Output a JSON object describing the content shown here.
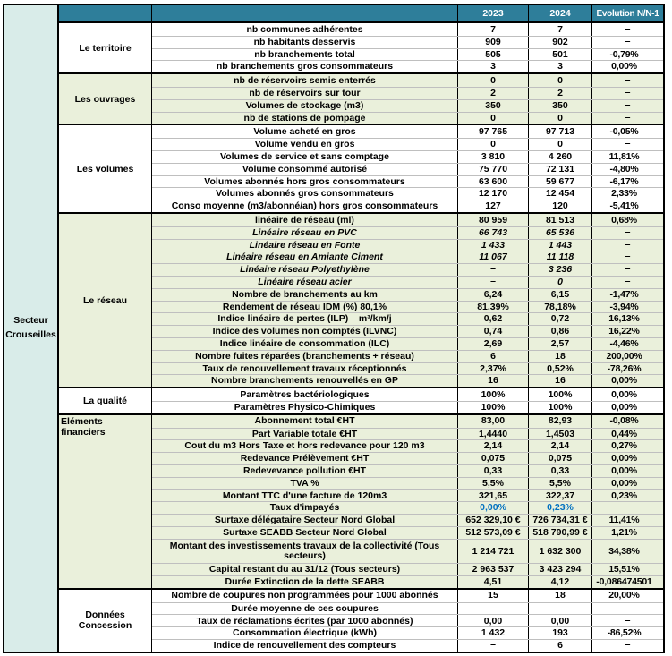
{
  "sector_label": "Secteur Crouseilles",
  "header": {
    "col_2023": "2023",
    "col_2024": "2024",
    "col_evolution": "Evolution N/N-1"
  },
  "colors": {
    "header_bg": "#2E7E9A",
    "header_text": "#FFFFFF",
    "section_green_bg": "#EAF0DB",
    "sector_bg": "#D9ECE9",
    "blue_value": "#0070C0"
  },
  "dash_symbol": "–",
  "sections": [
    {
      "key": "territoire",
      "label": "Le territoire",
      "shaded": false,
      "rows": [
        {
          "label": "nb communes adhérentes",
          "y2023": "7",
          "y2024": "7",
          "evo": "–"
        },
        {
          "label": "nb habitants desservis",
          "y2023": "909",
          "y2024": "902",
          "evo": "–"
        },
        {
          "label": "nb branchements total",
          "y2023": "505",
          "y2024": "501",
          "evo": "-0,79%"
        },
        {
          "label": "nb branchements gros consommateurs",
          "y2023": "3",
          "y2024": "3",
          "evo": "0,00%"
        }
      ]
    },
    {
      "key": "ouvrages",
      "label": "Les ouvrages",
      "shaded": true,
      "rows": [
        {
          "label": "nb de réservoirs semis enterrés",
          "y2023": "0",
          "y2024": "0",
          "evo": "–"
        },
        {
          "label": "nb de réservoirs sur tour",
          "y2023": "2",
          "y2024": "2",
          "evo": "–"
        },
        {
          "label": "Volumes de stockage (m3)",
          "y2023": "350",
          "y2024": "350",
          "evo": "–"
        },
        {
          "label": "nb de stations de pompage",
          "y2023": "0",
          "y2024": "0",
          "evo": "–"
        }
      ]
    },
    {
      "key": "volumes",
      "label": "Les volumes",
      "shaded": false,
      "rows": [
        {
          "label": "Volume acheté en gros",
          "y2023": "97 765",
          "y2024": "97 713",
          "evo": "-0,05%"
        },
        {
          "label": "Volume vendu en gros",
          "y2023": "0",
          "y2024": "0",
          "evo": "–"
        },
        {
          "label": "Volumes de service et sans comptage",
          "y2023": "3 810",
          "y2024": "4 260",
          "evo": "11,81%"
        },
        {
          "label": "Volume consommé autorisé",
          "y2023": "75 770",
          "y2024": "72 131",
          "evo": "-4,80%"
        },
        {
          "label": "Volumes abonnés hors gros consommateurs",
          "y2023": "63 600",
          "y2024": "59 677",
          "evo": "-6,17%"
        },
        {
          "label": "Volumes abonnés gros consommateurs",
          "y2023": "12 170",
          "y2024": "12 454",
          "evo": "2,33%"
        },
        {
          "label": "Conso moyenne (m3/abonné/an) hors gros consommateurs",
          "y2023": "127",
          "y2024": "120",
          "evo": "-5,41%"
        }
      ]
    },
    {
      "key": "reseau",
      "label": "Le réseau",
      "shaded": true,
      "rows": [
        {
          "label": "linéaire de réseau (ml)",
          "y2023": "80 959",
          "y2024": "81 513",
          "evo": "0,68%"
        },
        {
          "label": "Linéaire réseau en PVC",
          "y2023": "66 743",
          "y2024": "65 536",
          "evo": "–",
          "italic": true
        },
        {
          "label": "Linéaire réseau en Fonte",
          "y2023": "1 433",
          "y2024": "1 443",
          "evo": "–",
          "italic": true
        },
        {
          "label": "Linéaire réseau en Amiante Ciment",
          "y2023": "11 067",
          "y2024": "11 118",
          "evo": "–",
          "italic": true
        },
        {
          "label": "Linéaire réseau Polyethylène",
          "y2023": "–",
          "y2024": "3 236",
          "evo": "–",
          "italic": true
        },
        {
          "label": "Linéaire réseau acier",
          "y2023": "–",
          "y2024": "0",
          "evo": "–",
          "italic": true
        },
        {
          "label": "Nombre de branchements au km",
          "y2023": "6,24",
          "y2024": "6,15",
          "evo": "-1,47%"
        },
        {
          "label": "Rendement de réseau IDM (%) 80,1%",
          "y2023": "81,39%",
          "y2024": "78,18%",
          "evo": "-3,94%"
        },
        {
          "label": "Indice linéaire de pertes (ILP) – m³/km/j",
          "y2023": "0,62",
          "y2024": "0,72",
          "evo": "16,13%"
        },
        {
          "label": "Indice des volumes non comptés (ILVNC)",
          "y2023": "0,74",
          "y2024": "0,86",
          "evo": "16,22%"
        },
        {
          "label": "Indice linéaire de consommation (ILC)",
          "y2023": "2,69",
          "y2024": "2,57",
          "evo": "-4,46%"
        },
        {
          "label": "Nombre fuites réparées (branchements + réseau)",
          "y2023": "6",
          "y2024": "18",
          "evo": "200,00%"
        },
        {
          "label": "Taux de renouvellement travaux réceptionnés",
          "y2023": "2,37%",
          "y2024": "0,52%",
          "evo": "-78,26%"
        },
        {
          "label": "Nombre branchements renouvellés en GP",
          "y2023": "16",
          "y2024": "16",
          "evo": "0,00%"
        }
      ]
    },
    {
      "key": "qualite",
      "label": "La qualité",
      "shaded": false,
      "rows": [
        {
          "label": "Paramètres bactériologiques",
          "y2023": "100%",
          "y2024": "100%",
          "evo": "0,00%"
        },
        {
          "label": "Paramètres Physico-Chimiques",
          "y2023": "100%",
          "y2024": "100%",
          "evo": "0,00%"
        }
      ]
    },
    {
      "key": "financiers",
      "label": "Eléments financiers",
      "shaded": true,
      "label_top": true,
      "rows": [
        {
          "label": "Abonnement total €HT",
          "y2023": "83,00",
          "y2024": "82,93",
          "evo": "-0,08%"
        },
        {
          "label": "Part Variable totale €HT",
          "y2023": "1,4440",
          "y2024": "1,4503",
          "evo": "0,44%"
        },
        {
          "label": "Cout du m3 Hors Taxe et hors redevance pour 120 m3",
          "y2023": "2,14",
          "y2024": "2,14",
          "evo": "0,27%"
        },
        {
          "label": "Redevance Prélèvement €HT",
          "y2023": "0,075",
          "y2024": "0,075",
          "evo": "0,00%"
        },
        {
          "label": "Redevevance pollution €HT",
          "y2023": "0,33",
          "y2024": "0,33",
          "evo": "0,00%"
        },
        {
          "label": "TVA %",
          "y2023": "5,5%",
          "y2024": "5,5%",
          "evo": "0,00%"
        },
        {
          "label": "Montant TTC d'une facture de 120m3",
          "y2023": "321,65",
          "y2024": "322,37",
          "evo": "0,23%"
        },
        {
          "label": "Taux d'impayés",
          "y2023": "0,00%",
          "y2024": "0,23%",
          "evo": "–",
          "blue": true
        },
        {
          "label": "Surtaxe délégataire Secteur Nord Global",
          "y2023": "652 329,10 €",
          "y2024": "726 734,31 €",
          "evo": "11,41%"
        },
        {
          "label": "Surtaxe SEABB Secteur Nord Global",
          "y2023": "512 573,09 €",
          "y2024": "518 790,99 €",
          "evo": "1,21%"
        },
        {
          "label": "Montant des investissements travaux de la collectivité (Tous secteurs)",
          "y2023": "1 214 721",
          "y2024": "1 632 300",
          "evo": "34,38%",
          "tall": true
        },
        {
          "label": "Capital restant du au 31/12 (Tous secteurs)",
          "y2023": "2 963 537",
          "y2024": "3 423 294",
          "evo": "15,51%"
        },
        {
          "label": "Durée Extinction de la dette SEABB",
          "y2023": "4,51",
          "y2024": "4,12",
          "evo": "-0,086474501"
        }
      ]
    },
    {
      "key": "concession",
      "label": "Données Concession",
      "shaded": false,
      "rows": [
        {
          "label": "Nombre de coupures non programmées pour 1000 abonnés",
          "y2023": "15",
          "y2024": "18",
          "evo": "20,00%"
        },
        {
          "label": "Durée moyenne de ces coupures",
          "y2023": "",
          "y2024": "",
          "evo": ""
        },
        {
          "label": "Taux de réclamations écrites (par 1000 abonnés)",
          "y2023": "0,00",
          "y2024": "0,00",
          "evo": "–"
        },
        {
          "label": "Consommation électrique (kWh)",
          "y2023": "1 432",
          "y2024": "193",
          "evo": "-86,52%"
        },
        {
          "label": "Indice de renouvellement des compteurs",
          "y2023": "–",
          "y2024": "6",
          "evo": "–"
        }
      ]
    }
  ]
}
